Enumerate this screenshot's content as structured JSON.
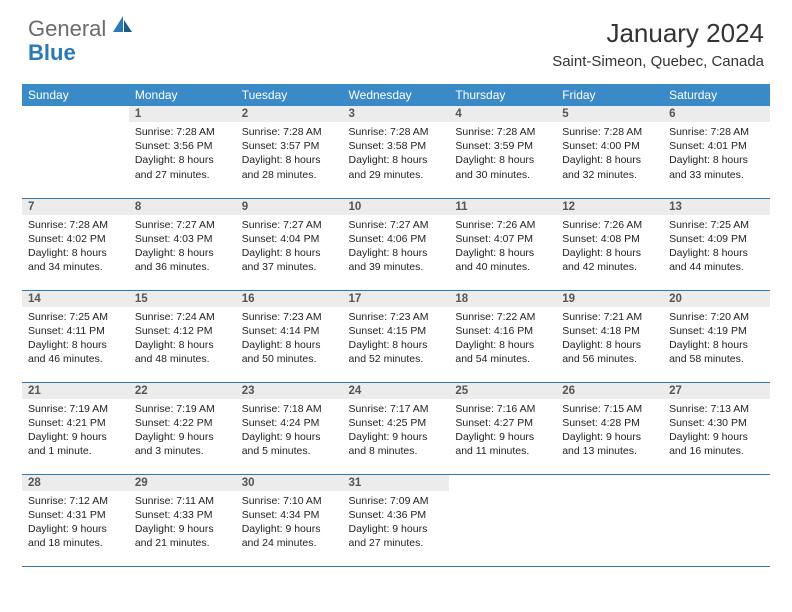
{
  "logo": {
    "text1": "General",
    "text2": "Blue"
  },
  "title": "January 2024",
  "location": "Saint-Simeon, Quebec, Canada",
  "colors": {
    "header_bg": "#3a8ac8",
    "border": "#2a7ab9",
    "daynum_bg": "#ececec",
    "logo_gray": "#6b6b6b",
    "logo_blue": "#2a7ab9"
  },
  "days_of_week": [
    "Sunday",
    "Monday",
    "Tuesday",
    "Wednesday",
    "Thursday",
    "Friday",
    "Saturday"
  ],
  "weeks": [
    [
      null,
      {
        "n": "1",
        "sr": "7:28 AM",
        "ss": "3:56 PM",
        "dl": "8 hours and 27 minutes."
      },
      {
        "n": "2",
        "sr": "7:28 AM",
        "ss": "3:57 PM",
        "dl": "8 hours and 28 minutes."
      },
      {
        "n": "3",
        "sr": "7:28 AM",
        "ss": "3:58 PM",
        "dl": "8 hours and 29 minutes."
      },
      {
        "n": "4",
        "sr": "7:28 AM",
        "ss": "3:59 PM",
        "dl": "8 hours and 30 minutes."
      },
      {
        "n": "5",
        "sr": "7:28 AM",
        "ss": "4:00 PM",
        "dl": "8 hours and 32 minutes."
      },
      {
        "n": "6",
        "sr": "7:28 AM",
        "ss": "4:01 PM",
        "dl": "8 hours and 33 minutes."
      }
    ],
    [
      {
        "n": "7",
        "sr": "7:28 AM",
        "ss": "4:02 PM",
        "dl": "8 hours and 34 minutes."
      },
      {
        "n": "8",
        "sr": "7:27 AM",
        "ss": "4:03 PM",
        "dl": "8 hours and 36 minutes."
      },
      {
        "n": "9",
        "sr": "7:27 AM",
        "ss": "4:04 PM",
        "dl": "8 hours and 37 minutes."
      },
      {
        "n": "10",
        "sr": "7:27 AM",
        "ss": "4:06 PM",
        "dl": "8 hours and 39 minutes."
      },
      {
        "n": "11",
        "sr": "7:26 AM",
        "ss": "4:07 PM",
        "dl": "8 hours and 40 minutes."
      },
      {
        "n": "12",
        "sr": "7:26 AM",
        "ss": "4:08 PM",
        "dl": "8 hours and 42 minutes."
      },
      {
        "n": "13",
        "sr": "7:25 AM",
        "ss": "4:09 PM",
        "dl": "8 hours and 44 minutes."
      }
    ],
    [
      {
        "n": "14",
        "sr": "7:25 AM",
        "ss": "4:11 PM",
        "dl": "8 hours and 46 minutes."
      },
      {
        "n": "15",
        "sr": "7:24 AM",
        "ss": "4:12 PM",
        "dl": "8 hours and 48 minutes."
      },
      {
        "n": "16",
        "sr": "7:23 AM",
        "ss": "4:14 PM",
        "dl": "8 hours and 50 minutes."
      },
      {
        "n": "17",
        "sr": "7:23 AM",
        "ss": "4:15 PM",
        "dl": "8 hours and 52 minutes."
      },
      {
        "n": "18",
        "sr": "7:22 AM",
        "ss": "4:16 PM",
        "dl": "8 hours and 54 minutes."
      },
      {
        "n": "19",
        "sr": "7:21 AM",
        "ss": "4:18 PM",
        "dl": "8 hours and 56 minutes."
      },
      {
        "n": "20",
        "sr": "7:20 AM",
        "ss": "4:19 PM",
        "dl": "8 hours and 58 minutes."
      }
    ],
    [
      {
        "n": "21",
        "sr": "7:19 AM",
        "ss": "4:21 PM",
        "dl": "9 hours and 1 minute."
      },
      {
        "n": "22",
        "sr": "7:19 AM",
        "ss": "4:22 PM",
        "dl": "9 hours and 3 minutes."
      },
      {
        "n": "23",
        "sr": "7:18 AM",
        "ss": "4:24 PM",
        "dl": "9 hours and 5 minutes."
      },
      {
        "n": "24",
        "sr": "7:17 AM",
        "ss": "4:25 PM",
        "dl": "9 hours and 8 minutes."
      },
      {
        "n": "25",
        "sr": "7:16 AM",
        "ss": "4:27 PM",
        "dl": "9 hours and 11 minutes."
      },
      {
        "n": "26",
        "sr": "7:15 AM",
        "ss": "4:28 PM",
        "dl": "9 hours and 13 minutes."
      },
      {
        "n": "27",
        "sr": "7:13 AM",
        "ss": "4:30 PM",
        "dl": "9 hours and 16 minutes."
      }
    ],
    [
      {
        "n": "28",
        "sr": "7:12 AM",
        "ss": "4:31 PM",
        "dl": "9 hours and 18 minutes."
      },
      {
        "n": "29",
        "sr": "7:11 AM",
        "ss": "4:33 PM",
        "dl": "9 hours and 21 minutes."
      },
      {
        "n": "30",
        "sr": "7:10 AM",
        "ss": "4:34 PM",
        "dl": "9 hours and 24 minutes."
      },
      {
        "n": "31",
        "sr": "7:09 AM",
        "ss": "4:36 PM",
        "dl": "9 hours and 27 minutes."
      },
      null,
      null,
      null
    ]
  ],
  "labels": {
    "sunrise": "Sunrise:",
    "sunset": "Sunset:",
    "daylight": "Daylight:"
  }
}
